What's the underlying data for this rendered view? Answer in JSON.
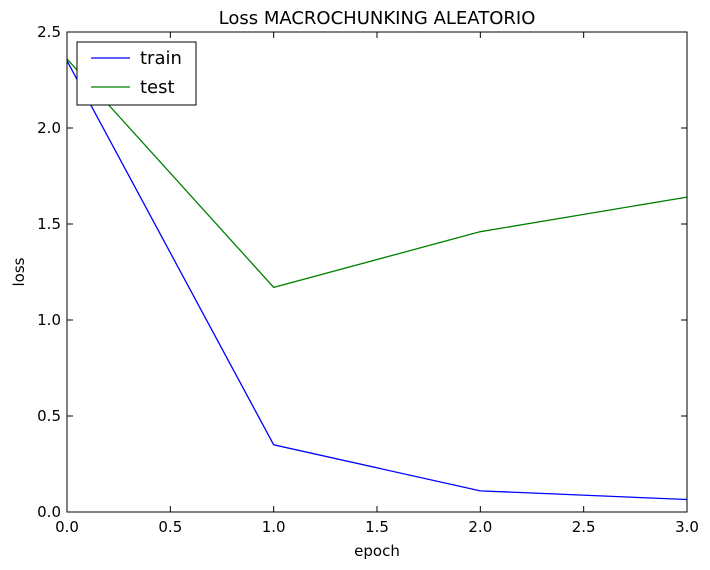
{
  "chart_data": {
    "type": "line",
    "title": "Loss MACROCHUNKING ALEATORIO",
    "xlabel": "epoch",
    "ylabel": "loss",
    "xlim": [
      0.0,
      3.0
    ],
    "ylim": [
      0.0,
      2.5
    ],
    "xticks": [
      0.0,
      0.5,
      1.0,
      1.5,
      2.0,
      2.5,
      3.0
    ],
    "yticks": [
      0.0,
      0.5,
      1.0,
      1.5,
      2.0,
      2.5
    ],
    "xtick_labels": [
      "0.0",
      "0.5",
      "1.0",
      "1.5",
      "2.0",
      "2.5",
      "3.0"
    ],
    "ytick_labels": [
      "0.0",
      "0.5",
      "1.0",
      "1.5",
      "2.0",
      "2.5"
    ],
    "grid": false,
    "legend_position": "top-left",
    "x": [
      0,
      1,
      2,
      3
    ],
    "series": [
      {
        "name": "train",
        "color": "#0000ff",
        "values": [
          2.35,
          0.35,
          0.11,
          0.065
        ]
      },
      {
        "name": "test",
        "color": "#008000",
        "values": [
          2.36,
          1.17,
          1.46,
          1.64
        ]
      }
    ]
  }
}
